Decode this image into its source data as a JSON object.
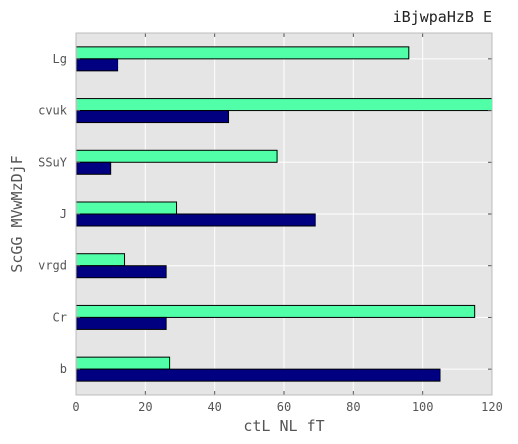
{
  "chart_data": {
    "type": "bar",
    "orientation": "horizontal",
    "title": "iBjwpaHzB  E",
    "xlabel": "ctL NL fT",
    "ylabel": "ScGG MVwMzDjF",
    "categories": [
      "Lg",
      "cvuk",
      "SSuY",
      "J",
      "vrgd",
      "Cr",
      "b"
    ],
    "series": [
      {
        "color": "#50ffa8",
        "values": [
          96,
          120,
          58,
          29,
          14,
          115,
          27
        ]
      },
      {
        "color": "#000080",
        "values": [
          12,
          44,
          10,
          69,
          26,
          26,
          105
        ]
      }
    ],
    "xlim": [
      0,
      120
    ],
    "xticks": [
      0,
      20,
      40,
      60,
      80,
      100,
      120
    ],
    "grid": true,
    "background": "#e5e5e5",
    "grid_color": "#ffffff"
  }
}
